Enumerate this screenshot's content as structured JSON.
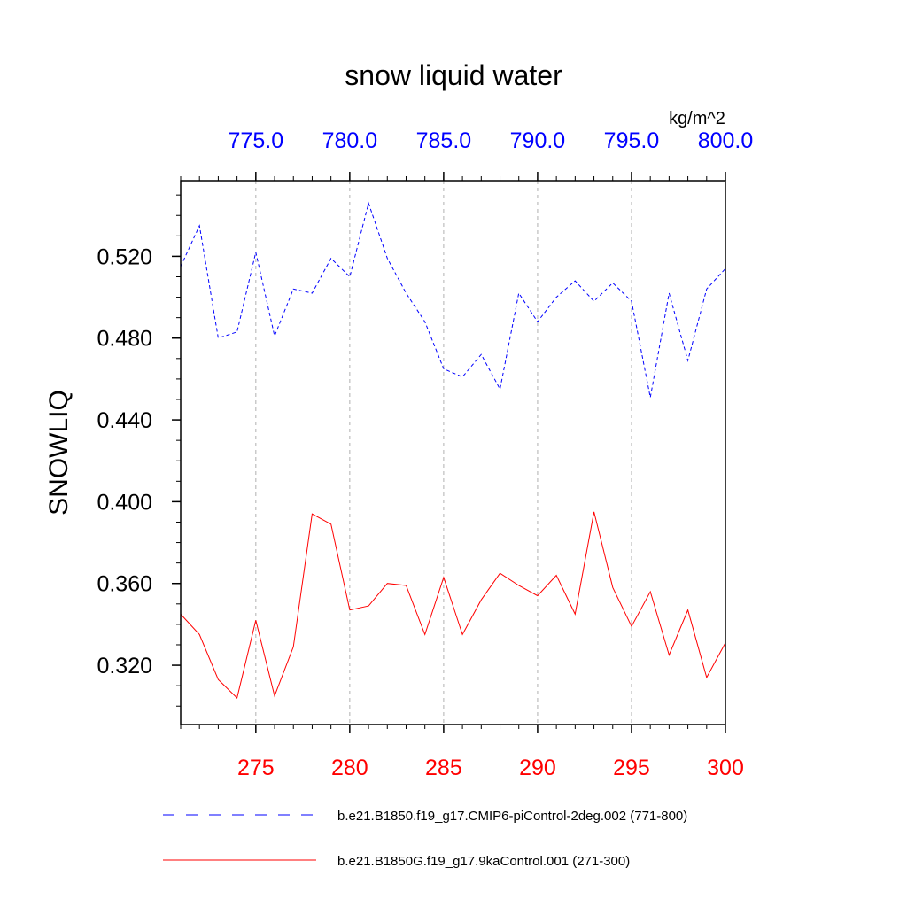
{
  "chart_data": {
    "type": "line",
    "title": "snow liquid water",
    "units": "kg/m^2",
    "ylabel": "SNOWLIQ",
    "ylim": [
      0.291,
      0.557
    ],
    "yticks": [
      "0.320",
      "0.360",
      "0.400",
      "0.440",
      "0.480",
      "0.520"
    ],
    "bottom_axis": {
      "range": [
        271,
        300
      ],
      "ticks": [
        "275",
        "280",
        "285",
        "290",
        "295",
        "300"
      ],
      "color": "#ff0000"
    },
    "top_axis": {
      "range": [
        771,
        800
      ],
      "ticks": [
        "775.0",
        "780.0",
        "785.0",
        "790.0",
        "795.0",
        "800.0"
      ],
      "color": "#0000ff"
    },
    "grid": "vertical dashed at major ticks",
    "series": [
      {
        "name": "b.e21.B1850.f19_g17.CMIP6-piControl-2deg.002 (771-800)",
        "color": "#0000ff",
        "dash": "dashed",
        "axis": "top",
        "x": [
          771,
          772,
          773,
          774,
          775,
          776,
          777,
          778,
          779,
          780,
          781,
          782,
          783,
          784,
          785,
          786,
          787,
          788,
          789,
          790,
          791,
          792,
          793,
          794,
          795,
          796,
          797,
          798,
          799,
          800
        ],
        "values": [
          0.515,
          0.535,
          0.48,
          0.483,
          0.522,
          0.481,
          0.504,
          0.502,
          0.519,
          0.51,
          0.546,
          0.519,
          0.502,
          0.488,
          0.465,
          0.461,
          0.472,
          0.455,
          0.502,
          0.488,
          0.5,
          0.508,
          0.498,
          0.507,
          0.498,
          0.451,
          0.502,
          0.469,
          0.504,
          0.514
        ]
      },
      {
        "name": "b.e21.B1850G.f19_g17.9kaControl.001 (271-300)",
        "color": "#ff0000",
        "dash": "solid",
        "axis": "bottom",
        "x": [
          271,
          272,
          273,
          274,
          275,
          276,
          277,
          278,
          279,
          280,
          281,
          282,
          283,
          284,
          285,
          286,
          287,
          288,
          289,
          290,
          291,
          292,
          293,
          294,
          295,
          296,
          297,
          298,
          299,
          300
        ],
        "values": [
          0.345,
          0.335,
          0.313,
          0.304,
          0.342,
          0.305,
          0.329,
          0.394,
          0.389,
          0.347,
          0.349,
          0.36,
          0.359,
          0.335,
          0.363,
          0.335,
          0.352,
          0.365,
          0.359,
          0.354,
          0.364,
          0.345,
          0.395,
          0.358,
          0.339,
          0.356,
          0.325,
          0.347,
          0.314,
          0.331
        ]
      }
    ]
  }
}
